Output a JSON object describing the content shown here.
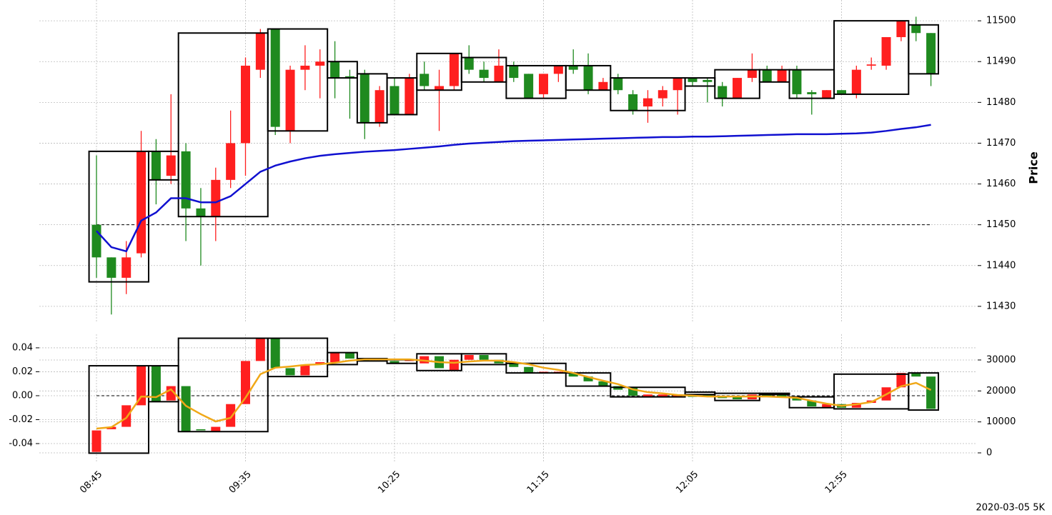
{
  "chart_data": {
    "type": "candlestick",
    "categories": [
      "08:45",
      null,
      null,
      null,
      null,
      null,
      null,
      null,
      null,
      null,
      "09:35",
      null,
      null,
      null,
      null,
      null,
      null,
      null,
      null,
      null,
      "10:25",
      null,
      null,
      null,
      null,
      null,
      null,
      null,
      null,
      null,
      "11:15",
      null,
      null,
      null,
      null,
      null,
      null,
      null,
      null,
      null,
      "12:05",
      null,
      null,
      null,
      null,
      null,
      null,
      null,
      null,
      null,
      "12:55",
      null,
      null,
      null,
      null,
      null,
      null
    ],
    "ylabel": "Price",
    "footnote": "2020-03-05 5K",
    "ylim": [
      11426.3,
      11505.1
    ],
    "yticks": [
      11430,
      11440,
      11450,
      11460,
      11470,
      11480,
      11490,
      11500
    ],
    "grid": true,
    "up_color": "#ff1f1f",
    "down_color": "#1f8a1f",
    "open": [
      11450,
      11442,
      11437,
      11443,
      11468,
      11462,
      11468,
      11454,
      11452,
      11461,
      11470,
      11488,
      11498,
      11473,
      11488,
      11489,
      11490,
      11486.4,
      11487,
      11475,
      11484,
      11477,
      11487,
      11483,
      11484,
      11491,
      11488,
      11485,
      11489,
      11487,
      11482,
      11487,
      11489,
      11489,
      11483,
      11486,
      11482,
      11479,
      11481,
      11483,
      11486,
      11485.5,
      11484,
      11481,
      11486,
      11488,
      11485,
      11488,
      11482.5,
      11481,
      11483,
      11482,
      11489,
      11489,
      11496,
      11499,
      11497
    ],
    "high": [
      11467,
      11442,
      11446,
      11473,
      11471,
      11482,
      11470,
      11459,
      11464,
      11478,
      11491,
      11498,
      11498,
      11489,
      11494,
      11493,
      11495,
      11488,
      11488,
      11484,
      11486,
      11487,
      11490,
      11488,
      11492,
      11494,
      11490,
      11493,
      11490,
      11487,
      11487,
      11489,
      11493,
      11492,
      11486,
      11487,
      11483,
      11483,
      11484,
      11486,
      11486,
      11486,
      11485,
      11486,
      11492,
      11489,
      11489,
      11489,
      11483,
      11483,
      11483,
      11489,
      11491,
      11496,
      11500,
      11501,
      11497
    ],
    "low": [
      11437,
      11428,
      11433,
      11442,
      11455,
      11460,
      11446,
      11440,
      11446,
      11459,
      11462,
      11486,
      11472,
      11470,
      11483,
      11481,
      11481,
      11476,
      11471,
      11474,
      11477,
      11477,
      11483,
      11473,
      11483,
      11487,
      11485,
      11485,
      11485,
      11481,
      11481,
      11485,
      11487,
      11482,
      11483,
      11482,
      11477,
      11475,
      11479,
      11477,
      11484,
      11480,
      11479,
      11481,
      11485,
      11485,
      11485,
      11481,
      11477,
      11481,
      11482,
      11481,
      11488,
      11488,
      11495,
      11495,
      11484
    ],
    "close": [
      11442,
      11437,
      11442,
      11468,
      11461,
      11467,
      11454,
      11452,
      11461,
      11470,
      11489,
      11497,
      11474,
      11488,
      11489,
      11490,
      11486,
      11486,
      11475,
      11483,
      11477,
      11486,
      11484,
      11484,
      11492,
      11488,
      11486,
      11489,
      11486,
      11481,
      11487,
      11489,
      11488,
      11483,
      11485,
      11483,
      11478,
      11481,
      11483,
      11486,
      11485,
      11485,
      11481,
      11486,
      11488,
      11485,
      11488,
      11482,
      11482,
      11483,
      11482,
      11488,
      11489.3,
      11496,
      11500,
      11497,
      11487
    ],
    "ma": {
      "color": "#1010d0",
      "values": [
        11448.5,
        11444.5,
        11443.5,
        11451,
        11453,
        11456.5,
        11456.5,
        11455.5,
        11455.5,
        11457,
        11460,
        11463,
        11464.5,
        11465.5,
        11466.3,
        11466.9,
        11467.3,
        11467.6,
        11467.9,
        11468.1,
        11468.3,
        11468.6,
        11468.9,
        11469.2,
        11469.6,
        11469.9,
        11470.1,
        11470.3,
        11470.5,
        11470.6,
        11470.7,
        11470.8,
        11470.9,
        11471,
        11471.1,
        11471.2,
        11471.3,
        11471.4,
        11471.5,
        11471.5,
        11471.6,
        11471.6,
        11471.7,
        11471.8,
        11471.9,
        11472,
        11472.1,
        11472.2,
        11472.2,
        11472.2,
        11472.3,
        11472.4,
        11472.6,
        11473,
        11473.5,
        11473.9,
        11474.5
      ]
    },
    "reference_line": 11450,
    "boxes": [
      {
        "first": 0,
        "last": 3,
        "low": 11436,
        "high": 11468
      },
      {
        "first": 4,
        "last": 5,
        "low": 11461,
        "high": 11468
      },
      {
        "first": 6,
        "last": 11,
        "low": 11452,
        "high": 11497
      },
      {
        "first": 12,
        "last": 15,
        "low": 11473,
        "high": 11498
      },
      {
        "first": 16,
        "last": 17,
        "low": 11486,
        "high": 11490
      },
      {
        "first": 18,
        "last": 19,
        "low": 11475,
        "high": 11487
      },
      {
        "first": 20,
        "last": 21,
        "low": 11477,
        "high": 11486
      },
      {
        "first": 22,
        "last": 24,
        "low": 11483,
        "high": 11492
      },
      {
        "first": 25,
        "last": 27,
        "low": 11485,
        "high": 11491
      },
      {
        "first": 28,
        "last": 31,
        "low": 11481,
        "high": 11489
      },
      {
        "first": 32,
        "last": 34,
        "low": 11483,
        "high": 11489
      },
      {
        "first": 35,
        "last": 39,
        "low": 11478,
        "high": 11486
      },
      {
        "first": 40,
        "last": 41,
        "low": 11484,
        "high": 11486
      },
      {
        "first": 42,
        "last": 44,
        "low": 11481,
        "high": 11488
      },
      {
        "first": 45,
        "last": 46,
        "low": 11485,
        "high": 11488
      },
      {
        "first": 47,
        "last": 49,
        "low": 11481,
        "high": 11488
      },
      {
        "first": 50,
        "last": 54,
        "low": 11482,
        "high": 11500
      },
      {
        "first": 55,
        "last": 56,
        "low": 11487,
        "high": 11499
      }
    ],
    "lower": {
      "ylim": [
        -0.0561,
        0.0513
      ],
      "yticks": [
        -0.04,
        -0.02,
        {
          "value": 0,
          "label": "0.00"
        },
        0.02,
        0.04
      ],
      "y2lim": [
        -3230,
        38300
      ],
      "y2ticks": [
        0,
        10000,
        20000,
        30000
      ],
      "open": [
        -0.047,
        -0.028,
        -0.026,
        -0.008,
        0.025,
        -0.004,
        0.008,
        -0.028,
        -0.03,
        -0.026,
        -0.007,
        0.029,
        0.048,
        0.023,
        0.017,
        0.026,
        0.028,
        0.036,
        0.031,
        0.03,
        0.029,
        0.029,
        0.027,
        0.033,
        0.021,
        0.03,
        0.034,
        0.03,
        0.027,
        0.024,
        0.019,
        0.019,
        0.019,
        0.016,
        0.012,
        0.008,
        0.007,
        -0.001,
        -0.001,
        -0.001,
        0.001,
        0.001,
        -0.001,
        -0.001,
        -0.003,
        0.001,
        0.001,
        -0.001,
        -0.004,
        -0.01,
        -0.007,
        -0.01,
        -0.006,
        -0.004,
        0.007,
        0.019,
        0.016
      ],
      "close": [
        -0.029,
        -0.026,
        -0.008,
        0.025,
        -0.005,
        0.008,
        -0.03,
        -0.029,
        -0.026,
        -0.007,
        0.029,
        0.048,
        0.023,
        0.017,
        0.026,
        0.028,
        0.036,
        0.031,
        0.029,
        0.031,
        0.027,
        0.03,
        0.033,
        0.023,
        0.03,
        0.034,
        0.03,
        0.027,
        0.024,
        0.019,
        0.02,
        0.02,
        0.016,
        0.012,
        0.008,
        0.005,
        0.0,
        0.001,
        0.001,
        0.001,
        -0.001,
        -0.001,
        -0.002,
        -0.003,
        0.001,
        -0.001,
        -0.001,
        -0.004,
        -0.009,
        -0.007,
        -0.01,
        -0.006,
        -0.004,
        0.007,
        0.019,
        0.016,
        -0.011
      ],
      "line": {
        "color": "#f0a818",
        "axis": "y2",
        "values": [
          7850,
          8300,
          11300,
          18200,
          18000,
          20500,
          15200,
          12500,
          10150,
          11300,
          17800,
          25400,
          27500,
          27900,
          28400,
          28600,
          29100,
          29800,
          30200,
          30200,
          30200,
          30200,
          29800,
          29300,
          29100,
          29500,
          29800,
          29800,
          29300,
          28600,
          27500,
          26800,
          25800,
          24500,
          23300,
          22200,
          20500,
          19600,
          19200,
          18700,
          18500,
          18200,
          18200,
          18200,
          18200,
          18200,
          18000,
          17800,
          16800,
          15900,
          15200,
          15700,
          16400,
          18900,
          21500,
          22600,
          20300
        ]
      },
      "reference_line": 0,
      "boxes": [
        {
          "first": 0,
          "last": 3,
          "low": -0.048,
          "high": 0.025
        },
        {
          "first": 4,
          "last": 5,
          "low": -0.005,
          "high": 0.025
        },
        {
          "first": 6,
          "last": 11,
          "low": -0.03,
          "high": 0.048
        },
        {
          "first": 12,
          "last": 15,
          "low": 0.016,
          "high": 0.048
        },
        {
          "first": 16,
          "last": 17,
          "low": 0.026,
          "high": 0.036
        },
        {
          "first": 18,
          "last": 19,
          "low": 0.029,
          "high": 0.031
        },
        {
          "first": 20,
          "last": 21,
          "low": 0.027,
          "high": 0.03
        },
        {
          "first": 22,
          "last": 24,
          "low": 0.021,
          "high": 0.035
        },
        {
          "first": 25,
          "last": 27,
          "low": 0.026,
          "high": 0.035
        },
        {
          "first": 28,
          "last": 31,
          "low": 0.019,
          "high": 0.027
        },
        {
          "first": 32,
          "last": 34,
          "low": 0.008,
          "high": 0.019
        },
        {
          "first": 35,
          "last": 39,
          "low": -0.001,
          "high": 0.007
        },
        {
          "first": 40,
          "last": 41,
          "low": 0.001,
          "high": 0.003
        },
        {
          "first": 42,
          "last": 44,
          "low": -0.004,
          "high": 0.002
        },
        {
          "first": 45,
          "last": 46,
          "low": 0.001,
          "high": 0.002
        },
        {
          "first": 47,
          "last": 49,
          "low": -0.01,
          "high": -0.001
        },
        {
          "first": 50,
          "last": 54,
          "low": -0.011,
          "high": 0.018
        },
        {
          "first": 55,
          "last": 56,
          "low": -0.012,
          "high": 0.019
        }
      ]
    }
  }
}
